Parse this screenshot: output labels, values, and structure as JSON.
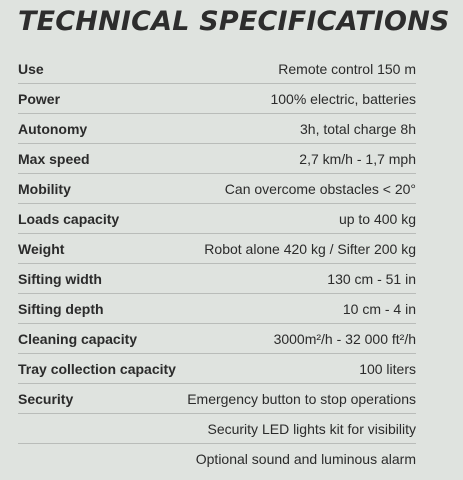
{
  "title": "TECHNICAL SPECIFICATIONS",
  "specs": [
    {
      "label": "Use",
      "value": "Remote control 150 m"
    },
    {
      "label": "Power",
      "value": "100% electric, batteries"
    },
    {
      "label": "Autonomy",
      "value": "3h, total charge 8h"
    },
    {
      "label": "Max speed",
      "value": "2,7 km/h - 1,7 mph"
    },
    {
      "label": "Mobility",
      "value": "Can overcome obstacles < 20°"
    },
    {
      "label": "Loads capacity",
      "value": "up to 400 kg"
    },
    {
      "label": "Weight",
      "value": "Robot alone 420 kg / Sifter 200 kg"
    },
    {
      "label": "Sifting width",
      "value": "130 cm - 51 in"
    },
    {
      "label": "Sifting depth",
      "value": "10 cm - 4 in"
    },
    {
      "label": "Cleaning capacity",
      "value": "3000m²/h - 32 000 ft²/h"
    },
    {
      "label": "Tray collection capacity",
      "value": "100 liters"
    },
    {
      "label": "Security",
      "value": "Emergency button to stop operations"
    },
    {
      "label": "",
      "value": "Security LED lights kit for visibility"
    },
    {
      "label": "",
      "value": "Optional sound and luminous alarm"
    }
  ]
}
